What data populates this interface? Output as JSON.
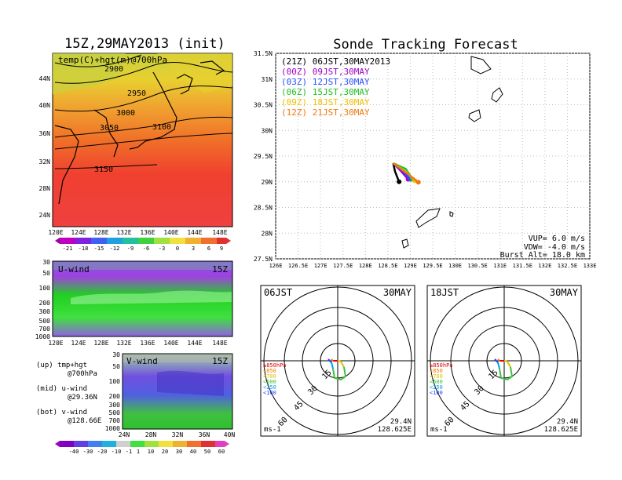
{
  "left_panel": {
    "title": "15Z,29MAY2013 (init)",
    "map_label": "temp(C)+hgt(m)@700hPa",
    "lat_ticks": [
      "44N",
      "40N",
      "36N",
      "32N",
      "28N",
      "24N"
    ],
    "lon_ticks": [
      "120E",
      "124E",
      "128E",
      "132E",
      "136E",
      "140E",
      "144E",
      "148E"
    ],
    "contours": [
      "2900",
      "2950",
      "3000",
      "3050",
      "3100",
      "3150"
    ],
    "temp_colorbar": [
      "-21",
      "-18",
      "-15",
      "-12",
      "-9",
      "-6",
      "-3",
      "0",
      "3",
      "6",
      "9"
    ],
    "u_wind_label": "U-wind",
    "u_wind_time": "15Z",
    "v_wind_label": "V-wind",
    "v_wind_time": "15Z",
    "pressure_ticks": [
      "30",
      "50",
      "100",
      "200",
      "300",
      "500",
      "700",
      "1000"
    ],
    "v_lat_ticks": [
      "24N",
      "28N",
      "32N",
      "36N",
      "40N"
    ],
    "wind_colorbar": [
      "-40",
      "-30",
      "-20",
      "-10",
      "-1",
      "1",
      "10",
      "20",
      "30",
      "40",
      "50",
      "60"
    ],
    "legend_up": "(up) tmp+hgt",
    "legend_up_sub": "@700hPa",
    "legend_mid": "(mid) u-wind",
    "legend_mid_sub": "@29.36N",
    "legend_bot": "(bot) v-wind",
    "legend_bot_sub": "@128.66E"
  },
  "right_panel": {
    "title": "Sonde Tracking Forecast",
    "lat_ticks": [
      "31.5N",
      "31N",
      "30.5N",
      "30N",
      "29.5N",
      "29N",
      "28.5N",
      "28N",
      "27.5N"
    ],
    "lon_ticks": [
      "126E",
      "126.5E",
      "127E",
      "127.5E",
      "128E",
      "128.5E",
      "129E",
      "129.5E",
      "130E",
      "130.5E",
      "131E",
      "131.5E",
      "132E",
      "132.5E",
      "133E"
    ],
    "legend": [
      {
        "text": "(21Z) 06JST,30MAY2013",
        "color": "#000000"
      },
      {
        "text": "(00Z) 09JST,30MAY",
        "color": "#a000c8"
      },
      {
        "text": "(03Z) 12JST,30MAY",
        "color": "#2850ff"
      },
      {
        "text": "(06Z) 15JST,30MAY",
        "color": "#20c020"
      },
      {
        "text": "(09Z) 18JST,30MAY",
        "color": "#f0c000"
      },
      {
        "text": "(12Z) 21JST,30MAY",
        "color": "#f07810"
      }
    ],
    "vup": "VUP=  6.0 m/s",
    "vdw": "VDW= -4.0 m/s",
    "burst": "Burst Alt= 18.0 km"
  },
  "polar_left": {
    "time": "06JST",
    "date": "30MAY",
    "rings": [
      "15",
      "30",
      "45",
      "60"
    ],
    "unit": "ms-1",
    "lat": "29.4N",
    "lon": "128.625E"
  },
  "polar_right": {
    "time": "18JST",
    "date": "30MAY",
    "rings": [
      "15",
      "30",
      "45",
      "60"
    ],
    "unit": "ms-1",
    "lat": "29.4N",
    "lon": "128.625E"
  },
  "hodo_legend": [
    {
      "text": "≥850hPa",
      "color": "#e00000"
    },
    {
      "text": "<850",
      "color": "#f08000"
    },
    {
      "text": "<700",
      "color": "#e0c000"
    },
    {
      "text": "<500",
      "color": "#40c040"
    },
    {
      "text": "<250",
      "color": "#00a0e0"
    },
    {
      "text": "<100",
      "color": "#2040ff"
    }
  ],
  "chart_data": {
    "type": "line",
    "title": "Sonde Tracking Forecast",
    "xlabel": "",
    "ylabel": "",
    "xlim": [
      126,
      133
    ],
    "ylim": [
      27.5,
      31.5
    ],
    "series": [
      {
        "name": "(21Z) 06JST,30MAY2013",
        "color": "#000000",
        "x": [
          128.62,
          128.66,
          128.75
        ],
        "y": [
          29.36,
          29.2,
          29.0
        ]
      },
      {
        "name": "(00Z) 09JST,30MAY",
        "color": "#a000c8",
        "x": [
          128.62,
          128.8,
          128.95
        ],
        "y": [
          29.36,
          29.2,
          29.05
        ]
      },
      {
        "name": "(03Z) 12JST,30MAY",
        "color": "#2850ff",
        "x": [
          128.62,
          128.85,
          129.0
        ],
        "y": [
          29.36,
          29.2,
          29.05
        ]
      },
      {
        "name": "(06Z) 15JST,30MAY",
        "color": "#20c020",
        "x": [
          128.62,
          128.9,
          129.05
        ],
        "y": [
          29.36,
          29.25,
          29.05
        ]
      },
      {
        "name": "(09Z) 18JST,30MAY",
        "color": "#f0c000",
        "x": [
          128.62,
          128.9,
          129.1
        ],
        "y": [
          29.36,
          29.2,
          29.02
        ]
      },
      {
        "name": "(12Z) 21JST,30MAY",
        "color": "#f07810",
        "x": [
          128.62,
          128.95,
          129.18
        ],
        "y": [
          29.36,
          29.15,
          28.99
        ]
      }
    ]
  }
}
